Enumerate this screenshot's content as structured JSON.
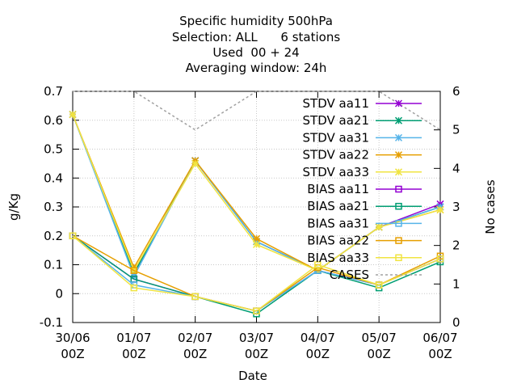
{
  "chart_data": {
    "type": "line",
    "title_lines": [
      "Specific humidity 500hPa",
      "Selection: ALL      6 stations",
      "Used  00 + 24",
      "Averaging window: 24h"
    ],
    "xlabel": "Date",
    "ylabel": "g/Kg",
    "y2label": "No cases",
    "categories": [
      {
        "date": "30/06",
        "hour": "00Z"
      },
      {
        "date": "01/07",
        "hour": "00Z"
      },
      {
        "date": "02/07",
        "hour": "00Z"
      },
      {
        "date": "03/07",
        "hour": "00Z"
      },
      {
        "date": "04/07",
        "hour": "00Z"
      },
      {
        "date": "05/07",
        "hour": "00Z"
      },
      {
        "date": "06/07",
        "hour": "00Z"
      }
    ],
    "ylim": [
      -0.1,
      0.7
    ],
    "yticks": [
      "-0.1",
      "0",
      "0.1",
      "0.2",
      "0.3",
      "0.4",
      "0.5",
      "0.6",
      "0.7"
    ],
    "y2lim": [
      0,
      6
    ],
    "y2ticks": [
      "0",
      "1",
      "2",
      "3",
      "4",
      "5",
      "6"
    ],
    "grid": true,
    "legend_position": "top-right",
    "series": [
      {
        "name": "STDV aa11",
        "color": "#9400d3",
        "marker": "star",
        "axis": "y1",
        "values": [
          0.62,
          0.07,
          0.46,
          0.18,
          0.08,
          0.23,
          0.31
        ]
      },
      {
        "name": "STDV aa21",
        "color": "#009e73",
        "marker": "star",
        "axis": "y1",
        "values": [
          0.62,
          0.07,
          0.46,
          0.18,
          0.08,
          0.23,
          0.3
        ]
      },
      {
        "name": "STDV aa31",
        "color": "#56b4e9",
        "marker": "star",
        "axis": "y1",
        "values": [
          0.62,
          0.06,
          0.46,
          0.18,
          0.08,
          0.23,
          0.3
        ]
      },
      {
        "name": "STDV aa22",
        "color": "#e69f00",
        "marker": "star",
        "axis": "y1",
        "values": [
          0.62,
          0.09,
          0.46,
          0.19,
          0.08,
          0.23,
          0.29
        ]
      },
      {
        "name": "STDV aa33",
        "color": "#f0e442",
        "marker": "star",
        "axis": "y1",
        "values": [
          0.62,
          0.08,
          0.45,
          0.17,
          0.08,
          0.23,
          0.29
        ]
      },
      {
        "name": "BIAS aa11",
        "color": "#9400d3",
        "marker": "square",
        "axis": "y1",
        "values": [
          0.2,
          0.05,
          -0.01,
          -0.06,
          0.08,
          0.03,
          0.12
        ]
      },
      {
        "name": "BIAS aa21",
        "color": "#009e73",
        "marker": "square",
        "axis": "y1",
        "values": [
          0.2,
          0.05,
          -0.01,
          -0.07,
          0.08,
          0.02,
          0.11
        ]
      },
      {
        "name": "BIAS aa31",
        "color": "#56b4e9",
        "marker": "square",
        "axis": "y1",
        "values": [
          0.2,
          0.03,
          -0.01,
          -0.06,
          0.08,
          0.03,
          0.12
        ]
      },
      {
        "name": "BIAS aa22",
        "color": "#e69f00",
        "marker": "square",
        "axis": "y1",
        "values": [
          0.2,
          0.08,
          -0.01,
          -0.06,
          0.09,
          0.03,
          0.13
        ]
      },
      {
        "name": "BIAS aa33",
        "color": "#f0e442",
        "marker": "square",
        "axis": "y1",
        "values": [
          0.2,
          0.02,
          -0.01,
          -0.06,
          0.1,
          0.03,
          0.12
        ]
      },
      {
        "name": "CASES",
        "color": "#a0a0a0",
        "marker": "none",
        "dash": true,
        "axis": "y2",
        "values": [
          6,
          6,
          5,
          6,
          6,
          6,
          5
        ]
      }
    ]
  }
}
